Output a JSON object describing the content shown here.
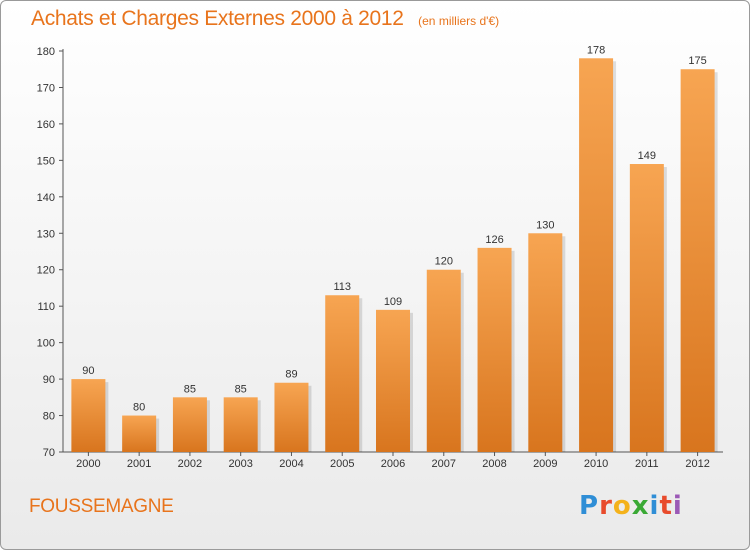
{
  "title": "Achats et Charges Externes 2000 à 2012",
  "unit": "(en milliers d'€)",
  "city": "FOUSSEMAGNE",
  "brand": {
    "letters": [
      "P",
      "r",
      "o",
      "x",
      "i",
      "t",
      "i"
    ],
    "colors": [
      "#2f8ed6",
      "#e84b2c",
      "#f4b21b",
      "#3aa935",
      "#2f8ed6",
      "#e84b2c",
      "#9b59b6"
    ]
  },
  "colors": {
    "bar_top": "#f7a552",
    "bar_bottom": "#d8751e",
    "title": "#e8741c"
  },
  "chart_data": {
    "type": "bar",
    "categories": [
      "2000",
      "2001",
      "2002",
      "2003",
      "2004",
      "2005",
      "2006",
      "2007",
      "2008",
      "2009",
      "2010",
      "2011",
      "2012"
    ],
    "values": [
      90,
      80,
      85,
      85,
      89,
      113,
      109,
      120,
      126,
      130,
      178,
      149,
      175
    ],
    "ylim": [
      70,
      180
    ],
    "yticks": [
      70,
      80,
      90,
      100,
      110,
      120,
      130,
      140,
      150,
      160,
      170,
      180
    ],
    "grid": false
  }
}
